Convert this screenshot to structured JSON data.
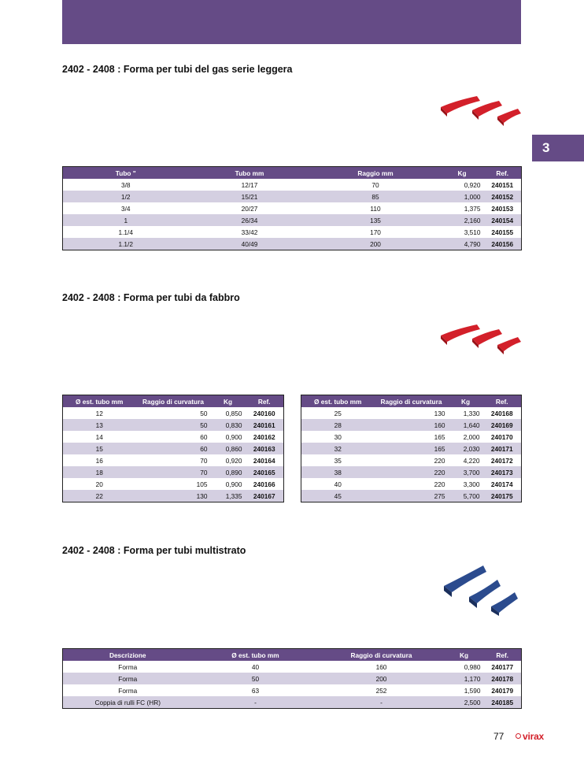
{
  "chapter": "3",
  "page_number": "77",
  "brand": "virax",
  "colors": {
    "header": "#654b86",
    "row_alt": "#d4cfe1",
    "red_former": "#d3202a",
    "blue_former": "#2b4b8e"
  },
  "sections": [
    {
      "title": "2402 - 2408 : Forma per tubi del gas serie leggera",
      "image_icon": "red-bending-former-image",
      "tables": [
        {
          "headers": [
            "Tubo \"",
            "Tubo mm",
            "Raggio mm",
            "Kg",
            "Ref."
          ],
          "rows": [
            [
              "3/8",
              "12/17",
              "70",
              "0,920",
              "240151"
            ],
            [
              "1/2",
              "15/21",
              "85",
              "1,000",
              "240152"
            ],
            [
              "3/4",
              "20/27",
              "110",
              "1,375",
              "240153"
            ],
            [
              "1",
              "26/34",
              "135",
              "2,160",
              "240154"
            ],
            [
              "1.1/4",
              "33/42",
              "170",
              "3,510",
              "240155"
            ],
            [
              "1.1/2",
              "40/49",
              "200",
              "4,790",
              "240156"
            ]
          ]
        }
      ]
    },
    {
      "title": "2402 - 2408 : Forma per tubi da fabbro",
      "image_icon": "red-bending-former-image",
      "tables": [
        {
          "headers": [
            "Ø est. tubo mm",
            "Raggio di curvatura",
            "Kg",
            "Ref."
          ],
          "rows": [
            [
              "12",
              "50",
              "0,850",
              "240160"
            ],
            [
              "13",
              "50",
              "0,830",
              "240161"
            ],
            [
              "14",
              "60",
              "0,900",
              "240162"
            ],
            [
              "15",
              "60",
              "0,860",
              "240163"
            ],
            [
              "16",
              "70",
              "0,920",
              "240164"
            ],
            [
              "18",
              "70",
              "0,890",
              "240165"
            ],
            [
              "20",
              "105",
              "0,900",
              "240166"
            ],
            [
              "22",
              "130",
              "1,335",
              "240167"
            ]
          ]
        },
        {
          "headers": [
            "Ø est. tubo mm",
            "Raggio di curvatura",
            "Kg",
            "Ref."
          ],
          "rows": [
            [
              "25",
              "130",
              "1,330",
              "240168"
            ],
            [
              "28",
              "160",
              "1,640",
              "240169"
            ],
            [
              "30",
              "165",
              "2,000",
              "240170"
            ],
            [
              "32",
              "165",
              "2,030",
              "240171"
            ],
            [
              "35",
              "220",
              "4,220",
              "240172"
            ],
            [
              "38",
              "220",
              "3,700",
              "240173"
            ],
            [
              "40",
              "220",
              "3,300",
              "240174"
            ],
            [
              "45",
              "275",
              "5,700",
              "240175"
            ]
          ]
        }
      ]
    },
    {
      "title": "2402 - 2408 : Forma per tubi multistrato",
      "image_icon": "blue-bending-former-image",
      "tables": [
        {
          "headers": [
            "Descrizione",
            "Ø est. tubo mm",
            "Raggio di curvatura",
            "Kg",
            "Ref."
          ],
          "rows": [
            [
              "Forma",
              "40",
              "160",
              "0,980",
              "240177"
            ],
            [
              "Forma",
              "50",
              "200",
              "1,170",
              "240178"
            ],
            [
              "Forma",
              "63",
              "252",
              "1,590",
              "240179"
            ],
            [
              "Coppia di rulli FC (HR)",
              "-",
              "-",
              "2,500",
              "240185"
            ]
          ]
        }
      ]
    }
  ]
}
